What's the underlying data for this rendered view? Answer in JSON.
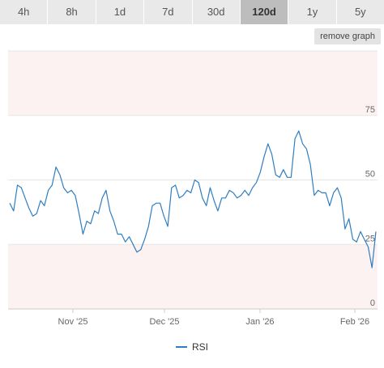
{
  "tabs": [
    {
      "label": "4h",
      "active": false
    },
    {
      "label": "8h",
      "active": false
    },
    {
      "label": "1d",
      "active": false
    },
    {
      "label": "7d",
      "active": false
    },
    {
      "label": "30d",
      "active": false
    },
    {
      "label": "120d",
      "active": true
    },
    {
      "label": "1y",
      "active": false
    },
    {
      "label": "5y",
      "active": false
    }
  ],
  "remove_graph_label": "remove graph",
  "colors": {
    "line": "#2f7ec1",
    "grid": "#e6e6e6",
    "band": "#fdf2f2",
    "tab_bg": "#e9e9e9",
    "tab_active": "#bdbdbd"
  },
  "chart_data": {
    "type": "line",
    "x_ticks": [
      "Nov '25",
      "Dec '25",
      "Jan '26",
      "Feb '26"
    ],
    "y_ticks": [
      0,
      25,
      50,
      75
    ],
    "ylim": [
      0,
      100
    ],
    "grid": true,
    "legend": "bottom-center",
    "series": [
      {
        "name": "RSI",
        "values": [
          41,
          38,
          48,
          47,
          43,
          39,
          36,
          37,
          42,
          40,
          46,
          48,
          55,
          52,
          47,
          45,
          46,
          44,
          37,
          29,
          34,
          33,
          38,
          37,
          43,
          46,
          38,
          34,
          29,
          29,
          26,
          28,
          25,
          22,
          23,
          27,
          32,
          40,
          41,
          41,
          36,
          32,
          47,
          48,
          43,
          44,
          46,
          45,
          50,
          49,
          43,
          40,
          47,
          42,
          38,
          43,
          43,
          46,
          45,
          43,
          44,
          46,
          44,
          47,
          49,
          53,
          59,
          64,
          60,
          52,
          51,
          54,
          51,
          51,
          66,
          69,
          64,
          62,
          56,
          44,
          46,
          45,
          45,
          40,
          45,
          47,
          43,
          31,
          35,
          27,
          26,
          30,
          27,
          24,
          16,
          30
        ]
      }
    ]
  }
}
